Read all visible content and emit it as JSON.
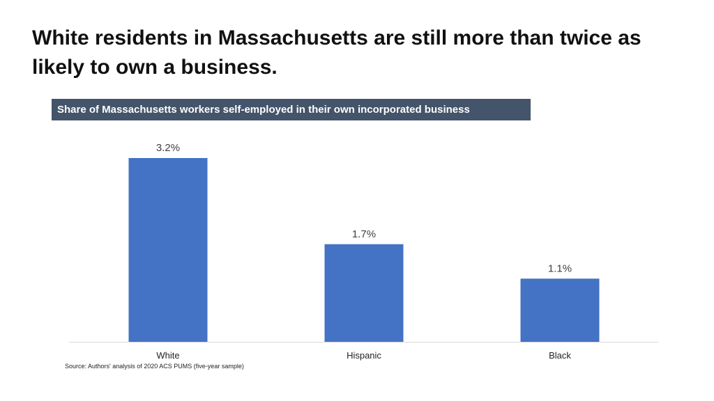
{
  "title": "White residents in Massachusetts are still more than twice as likely to own a business.",
  "subtitle": "Share of Massachusetts workers self-employed in their own incorporated business",
  "source": "Source: Authors' analysis of 2020 ACS PUMS (five-year sample)",
  "colors": {
    "bar": "#4472c4",
    "banner": "#44546a",
    "axis": "#d9d9d9",
    "label": "#404040"
  },
  "chart_data": {
    "type": "bar",
    "title": "Share of Massachusetts workers self-employed in their own incorporated business",
    "categories": [
      "White",
      "Hispanic",
      "Black"
    ],
    "values": [
      3.2,
      1.7,
      1.1
    ],
    "data_labels": [
      "3.2%",
      "1.7%",
      "1.1%"
    ],
    "xlabel": "",
    "ylabel": "",
    "ylim": [
      0,
      3.2
    ],
    "grid": false,
    "legend": "none"
  }
}
